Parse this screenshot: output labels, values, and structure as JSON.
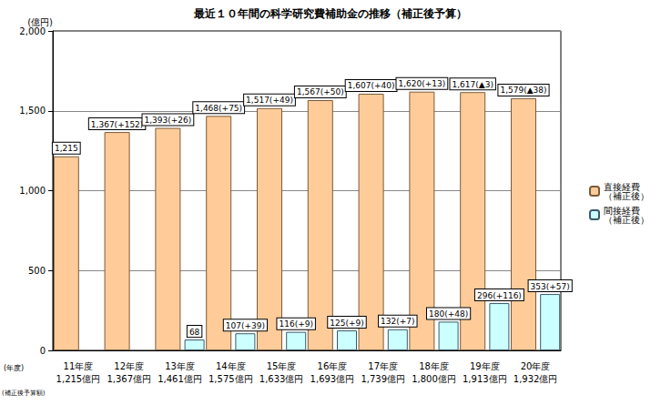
{
  "chart_data": {
    "type": "bar",
    "title": "最近１０年間の科学研究費補助金の推移（補正後予算）",
    "y_label": "(億円)",
    "x_label": "(年度)",
    "total_row_label": "(補正後予算額)",
    "categories": [
      "11年度",
      "12年度",
      "13年度",
      "14年度",
      "15年度",
      "16年度",
      "17年度",
      "18年度",
      "19年度",
      "20年度"
    ],
    "total_labels": [
      "1,215億円",
      "1,367億円",
      "1,461億円",
      "1,575億円",
      "1,633億円",
      "1,693億円",
      "1,739億円",
      "1,800億円",
      "1,913億円",
      "1,932億円"
    ],
    "series": [
      {
        "name": "直接経費（補正後）",
        "color": "#FFCC99",
        "values": [
          1215,
          1367,
          1393,
          1468,
          1517,
          1567,
          1607,
          1620,
          1617,
          1579
        ],
        "value_labels": [
          "1,215",
          "1,367(+152)",
          "1,393(+26)",
          "1,468(+75)",
          "1,517(+49)",
          "1,567(+50)",
          "1,607(+40)",
          "1,620(+13)",
          "1,617(▲3)",
          "1,579(▲38)"
        ]
      },
      {
        "name": "間接経費（補正後）",
        "color": "#CCFFFF",
        "values": [
          null,
          null,
          68,
          107,
          116,
          125,
          132,
          180,
          296,
          353
        ],
        "value_labels": [
          null,
          null,
          "68",
          "107(+39)",
          "116(+9)",
          "125(+9)",
          "132(+7)",
          "180(+48)",
          "296(+116)",
          "353(+57)"
        ]
      }
    ],
    "ylim": [
      0,
      2000
    ],
    "yticks": [
      0,
      500,
      {
        "value": 1000,
        "label": "1,000"
      },
      {
        "value": 1500,
        "label": "1,500"
      },
      {
        "value": 2000,
        "label": "2,000"
      }
    ],
    "grid": true,
    "legend": "right",
    "data_labels": true
  }
}
